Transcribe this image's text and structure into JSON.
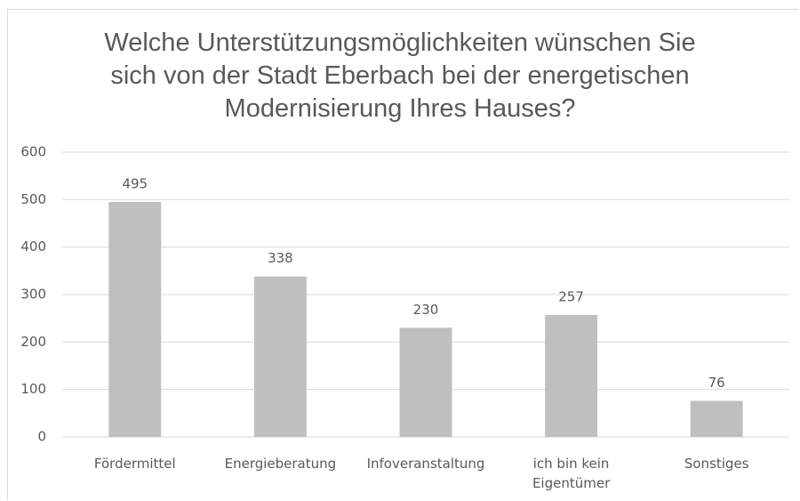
{
  "chart_data": {
    "type": "bar",
    "title": "Welche Unterstützungsmöglichkeiten wünschen Sie sich von der Stadt Eberbach bei der energetischen Modernisierung Ihres Hauses?",
    "categories": [
      "Fördermittel",
      "Energieberatung",
      "Infoveranstaltung",
      "ich bin kein Eigentümer",
      "Sonstiges"
    ],
    "values": [
      495,
      338,
      230,
      257,
      76
    ],
    "color": "#bfbfbf",
    "ylim": [
      0,
      600
    ],
    "yticks": [
      0,
      100,
      200,
      300,
      400,
      500,
      600
    ],
    "grid": true
  }
}
